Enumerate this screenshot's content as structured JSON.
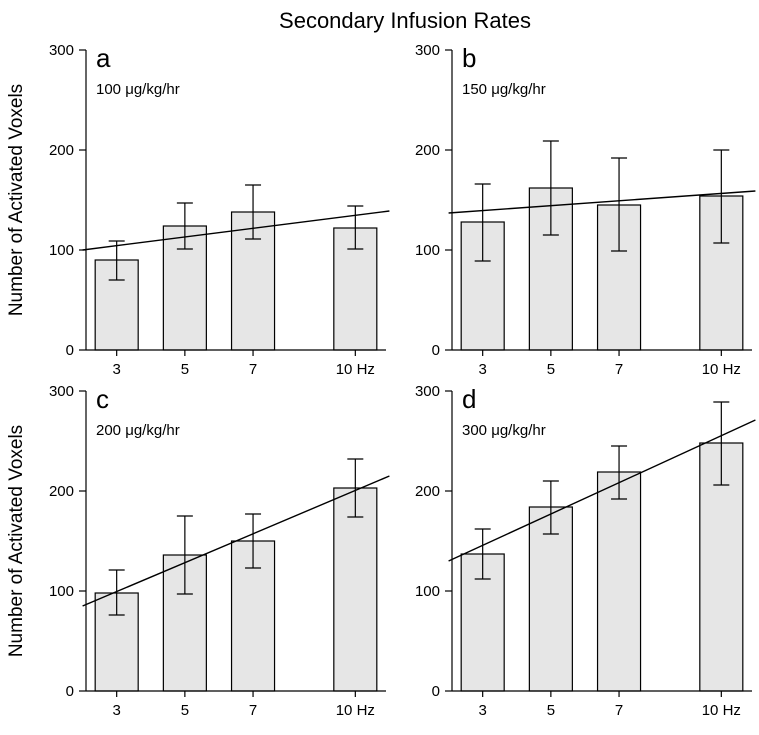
{
  "figure": {
    "title": "Secondary Infusion Rates",
    "ylabel": "Number of Activated Voxels"
  },
  "chart_data": [
    {
      "type": "bar",
      "panel": "a",
      "dose_label": "100 μg/kg/hr",
      "categories": [
        "3",
        "5",
        "7",
        "10 Hz"
      ],
      "x": [
        3,
        5,
        7,
        10
      ],
      "values": [
        90,
        124,
        138,
        122
      ],
      "error_low": [
        70,
        101,
        111,
        101
      ],
      "error_high": [
        109,
        147,
        165,
        144
      ],
      "fit_line": {
        "start": [
          2,
          100
        ],
        "end": [
          11,
          139
        ]
      },
      "ylim": [
        0,
        300
      ],
      "yticks": [
        0,
        100,
        200,
        300
      ]
    },
    {
      "type": "bar",
      "panel": "b",
      "dose_label": "150 μg/kg/hr",
      "categories": [
        "3",
        "5",
        "7",
        "10 Hz"
      ],
      "x": [
        3,
        5,
        7,
        10
      ],
      "values": [
        128,
        162,
        145,
        154
      ],
      "error_low": [
        89,
        115,
        99,
        107
      ],
      "error_high": [
        166,
        209,
        192,
        200
      ],
      "fit_line": {
        "start": [
          2,
          137
        ],
        "end": [
          11,
          159
        ]
      },
      "ylim": [
        0,
        300
      ],
      "yticks": [
        0,
        100,
        200,
        300
      ]
    },
    {
      "type": "bar",
      "panel": "c",
      "dose_label": "200 μg/kg/hr",
      "categories": [
        "3",
        "5",
        "7",
        "10 Hz"
      ],
      "x": [
        3,
        5,
        7,
        10
      ],
      "values": [
        98,
        136,
        150,
        203
      ],
      "error_low": [
        76,
        97,
        123,
        174
      ],
      "error_high": [
        121,
        175,
        177,
        232
      ],
      "fit_line": {
        "start": [
          2,
          85
        ],
        "end": [
          11,
          215
        ]
      },
      "ylim": [
        0,
        300
      ],
      "yticks": [
        0,
        100,
        200,
        300
      ]
    },
    {
      "type": "bar",
      "panel": "d",
      "dose_label": "300 μg/kg/hr",
      "categories": [
        "3",
        "5",
        "7",
        "10 Hz"
      ],
      "x": [
        3,
        5,
        7,
        10
      ],
      "values": [
        137,
        184,
        219,
        248
      ],
      "error_low": [
        112,
        157,
        192,
        206
      ],
      "error_high": [
        162,
        210,
        245,
        289
      ],
      "fit_line": {
        "start": [
          2,
          130
        ],
        "end": [
          11,
          271
        ]
      },
      "ylim": [
        0,
        300
      ],
      "yticks": [
        0,
        100,
        200,
        300
      ]
    }
  ]
}
